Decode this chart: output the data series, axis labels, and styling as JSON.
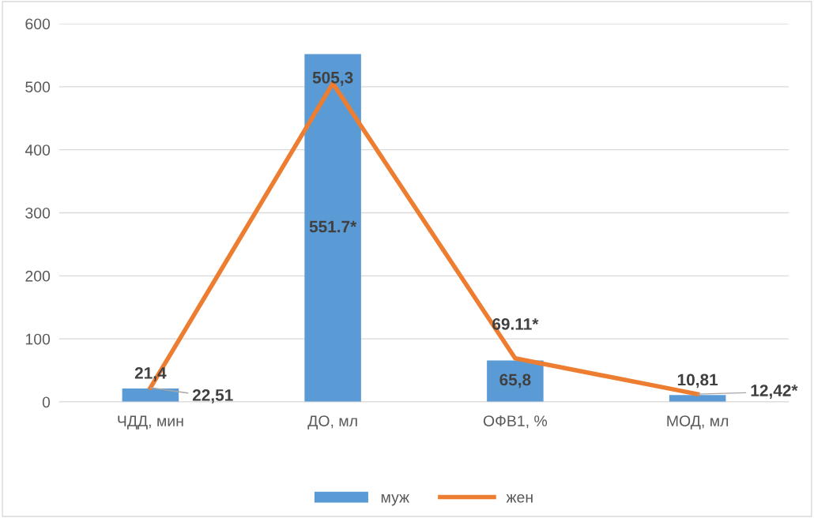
{
  "chart_data": {
    "type": "bar",
    "categories": [
      "ЧДД, мин",
      "ДО, мл",
      "ОФВ1, %",
      "МОД, мл"
    ],
    "series": [
      {
        "name": "муж",
        "color": "#5b9bd5",
        "values": [
          21.4,
          551.7,
          65.8,
          10.81
        ],
        "value_labels": [
          "21,4",
          "551.7*",
          "65,8",
          "10,81"
        ]
      },
      {
        "name": "жен",
        "type": "line",
        "color": "#ed7d31",
        "values": [
          22.51,
          505.3,
          69.11,
          12.42
        ],
        "value_labels": [
          "22,51",
          "505,3",
          "69.11*",
          "12,42*"
        ]
      }
    ],
    "ylim": [
      0,
      600
    ],
    "yticks": [
      0,
      100,
      200,
      300,
      400,
      500,
      600
    ],
    "grid": "y",
    "legend": "bottom",
    "marker": "none",
    "line_style": "solid"
  }
}
